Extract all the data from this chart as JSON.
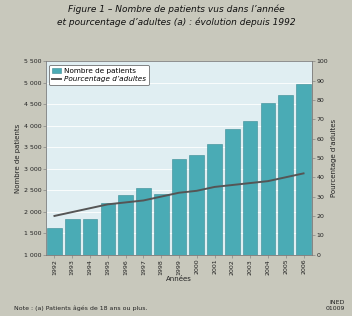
{
  "title_line1": "Figure 1 – Nombre de patients vus dans l’année",
  "title_line2": "et pourcentage d’adultes (a) : évolution depuis 1992",
  "years": [
    1992,
    1993,
    1994,
    1995,
    1996,
    1997,
    1998,
    1999,
    2000,
    2001,
    2002,
    2003,
    2004,
    2005,
    2006
  ],
  "patients": [
    1620,
    1830,
    1830,
    2200,
    2380,
    2560,
    2420,
    3230,
    3320,
    3580,
    3920,
    4100,
    4530,
    4720,
    4970
  ],
  "pourcentage": [
    20,
    22,
    24,
    26,
    27,
    28,
    30,
    32,
    33,
    35,
    36,
    37,
    38,
    40,
    42
  ],
  "bar_color": "#4AABB5",
  "bar_edge_color": "#3A8A94",
  "line_color": "#555555",
  "bg_color": "#E0EEF2",
  "fig_bg_color": "#C8C8BC",
  "ylabel_left": "Nombre de patients",
  "ylabel_right": "Pourcentage d’adultes",
  "xlabel": "Années",
  "ylim_left": [
    1000,
    5500
  ],
  "ylim_right": [
    0,
    100
  ],
  "yticks_left": [
    1000,
    1500,
    2000,
    2500,
    3000,
    3500,
    4000,
    4500,
    5000,
    5500
  ],
  "ytick_labels_left": [
    "1 000",
    "1 500",
    "2 000",
    "2 500",
    "3 000",
    "3 500",
    "4 000",
    "4 500",
    "5 000",
    "5 500"
  ],
  "yticks_right": [
    0,
    10,
    20,
    30,
    40,
    50,
    60,
    70,
    80,
    90,
    100
  ],
  "legend_label_bar": "Nombre de patients",
  "legend_label_line": "Pourcentage d’adultes",
  "note": "Note : (a) Patients âgés de 18 ans ou plus.",
  "source": "INED\n01009",
  "title_fontsize": 6.5,
  "axis_label_fontsize": 5.0,
  "tick_fontsize": 4.5,
  "legend_fontsize": 5.2,
  "note_fontsize": 4.5
}
